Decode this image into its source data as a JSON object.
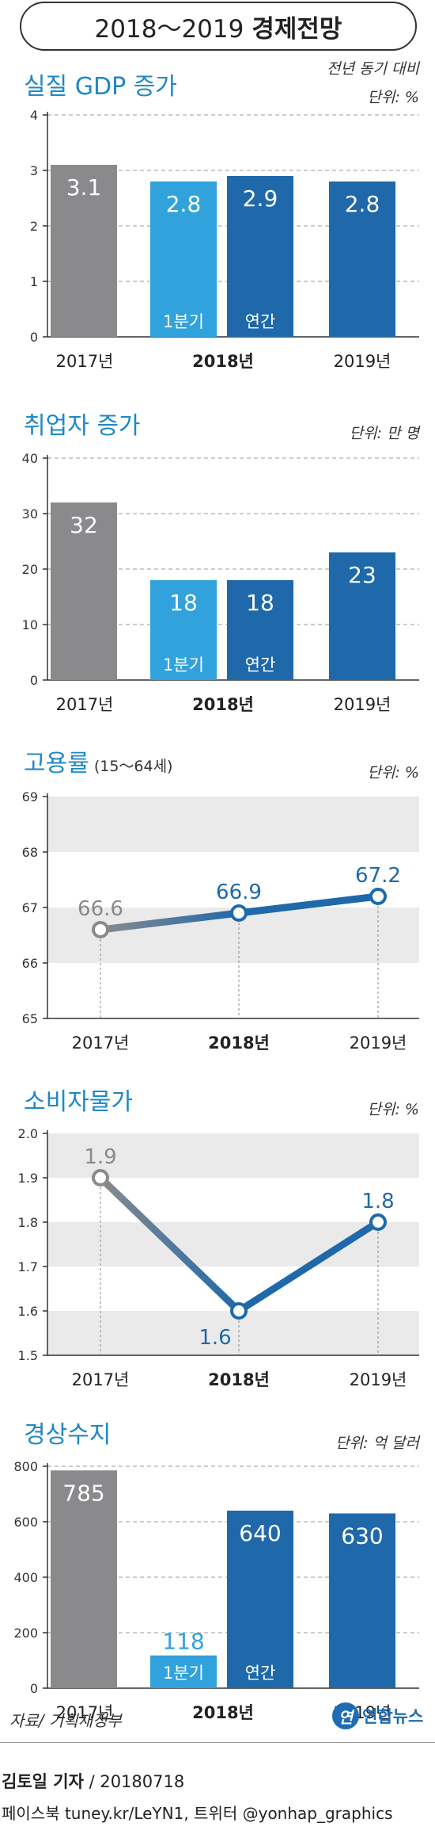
{
  "header": {
    "title_light": "2018～2019",
    "title_bold": "경제전망"
  },
  "colors": {
    "gray": "#8a8a8d",
    "light_blue": "#32a2dc",
    "dark_blue": "#1f69ab",
    "title_blue": "#1e88c8",
    "band": "#eaeaea"
  },
  "chart_data": [
    {
      "type": "bar",
      "title": "실질 GDP 증가",
      "unit_line1": "전년 동기 대비",
      "unit_line2": "단위: %",
      "yticks": [
        "0",
        "1",
        "2",
        "3",
        "4"
      ],
      "ylim": [
        0,
        4
      ],
      "bars": [
        {
          "value": 3.1,
          "label": "3.1",
          "sublabel": "",
          "color": "gray"
        },
        {
          "value": 2.8,
          "label": "2.8",
          "sublabel": "1분기",
          "color": "light_blue"
        },
        {
          "value": 2.9,
          "label": "2.9",
          "sublabel": "연간",
          "color": "dark_blue"
        },
        {
          "value": 2.8,
          "label": "2.8",
          "sublabel": "",
          "color": "dark_blue"
        }
      ],
      "xlabels": [
        "2017년",
        "2018년",
        "2019년"
      ]
    },
    {
      "type": "bar",
      "title": "취업자 증가",
      "unit_line1": "",
      "unit_line2": "단위: 만 명",
      "yticks": [
        "0",
        "10",
        "20",
        "30",
        "40"
      ],
      "ylim": [
        0,
        40
      ],
      "bars": [
        {
          "value": 32,
          "label": "32",
          "sublabel": "",
          "color": "gray"
        },
        {
          "value": 18,
          "label": "18",
          "sublabel": "1분기",
          "color": "light_blue"
        },
        {
          "value": 18,
          "label": "18",
          "sublabel": "연간",
          "color": "dark_blue"
        },
        {
          "value": 23,
          "label": "23",
          "sublabel": "",
          "color": "dark_blue"
        }
      ],
      "xlabels": [
        "2017년",
        "2018년",
        "2019년"
      ]
    },
    {
      "type": "line",
      "title": "고용률",
      "subtitle": "(15～64세)",
      "unit_line1": "",
      "unit_line2": "단위: %",
      "yticks": [
        "65",
        "66",
        "67",
        "68",
        "69"
      ],
      "ylim": [
        65,
        69
      ],
      "points": [
        {
          "x": "2017년",
          "value": 66.6,
          "label": "66.6"
        },
        {
          "x": "2018년",
          "value": 66.9,
          "label": "66.9"
        },
        {
          "x": "2019년",
          "value": 67.2,
          "label": "67.2"
        }
      ]
    },
    {
      "type": "line",
      "title": "소비자물가",
      "unit_line1": "",
      "unit_line2": "단위: %",
      "yticks": [
        "1.5",
        "1.6",
        "1.7",
        "1.8",
        "1.9",
        "2.0"
      ],
      "ylim": [
        1.5,
        2.0
      ],
      "points": [
        {
          "x": "2017년",
          "value": 1.9,
          "label": "1.9"
        },
        {
          "x": "2018년",
          "value": 1.6,
          "label": "1.6"
        },
        {
          "x": "2019년",
          "value": 1.8,
          "label": "1.8"
        }
      ]
    },
    {
      "type": "bar",
      "title": "경상수지",
      "unit_line1": "",
      "unit_line2": "단위: 억 달러",
      "yticks": [
        "0",
        "200",
        "400",
        "600",
        "800"
      ],
      "ylim": [
        0,
        800
      ],
      "bars": [
        {
          "value": 785,
          "label": "785",
          "sublabel": "",
          "color": "gray"
        },
        {
          "value": 118,
          "label": "118",
          "sublabel": "1분기",
          "color": "light_blue"
        },
        {
          "value": 640,
          "label": "640",
          "sublabel": "연간",
          "color": "dark_blue"
        },
        {
          "value": 630,
          "label": "630",
          "sublabel": "",
          "color": "dark_blue"
        }
      ],
      "xlabels": [
        "2017년",
        "2018년",
        "2019년"
      ]
    }
  ],
  "footer": {
    "source": "자료/ 기획재정부",
    "logo_mark": "연",
    "logo_text": "연합뉴스",
    "reporter": "김토일 기자",
    "date": " / 20180718",
    "links": "페이스북 tuney.kr/LeYN1, 트위터 @yonhap_graphics"
  }
}
